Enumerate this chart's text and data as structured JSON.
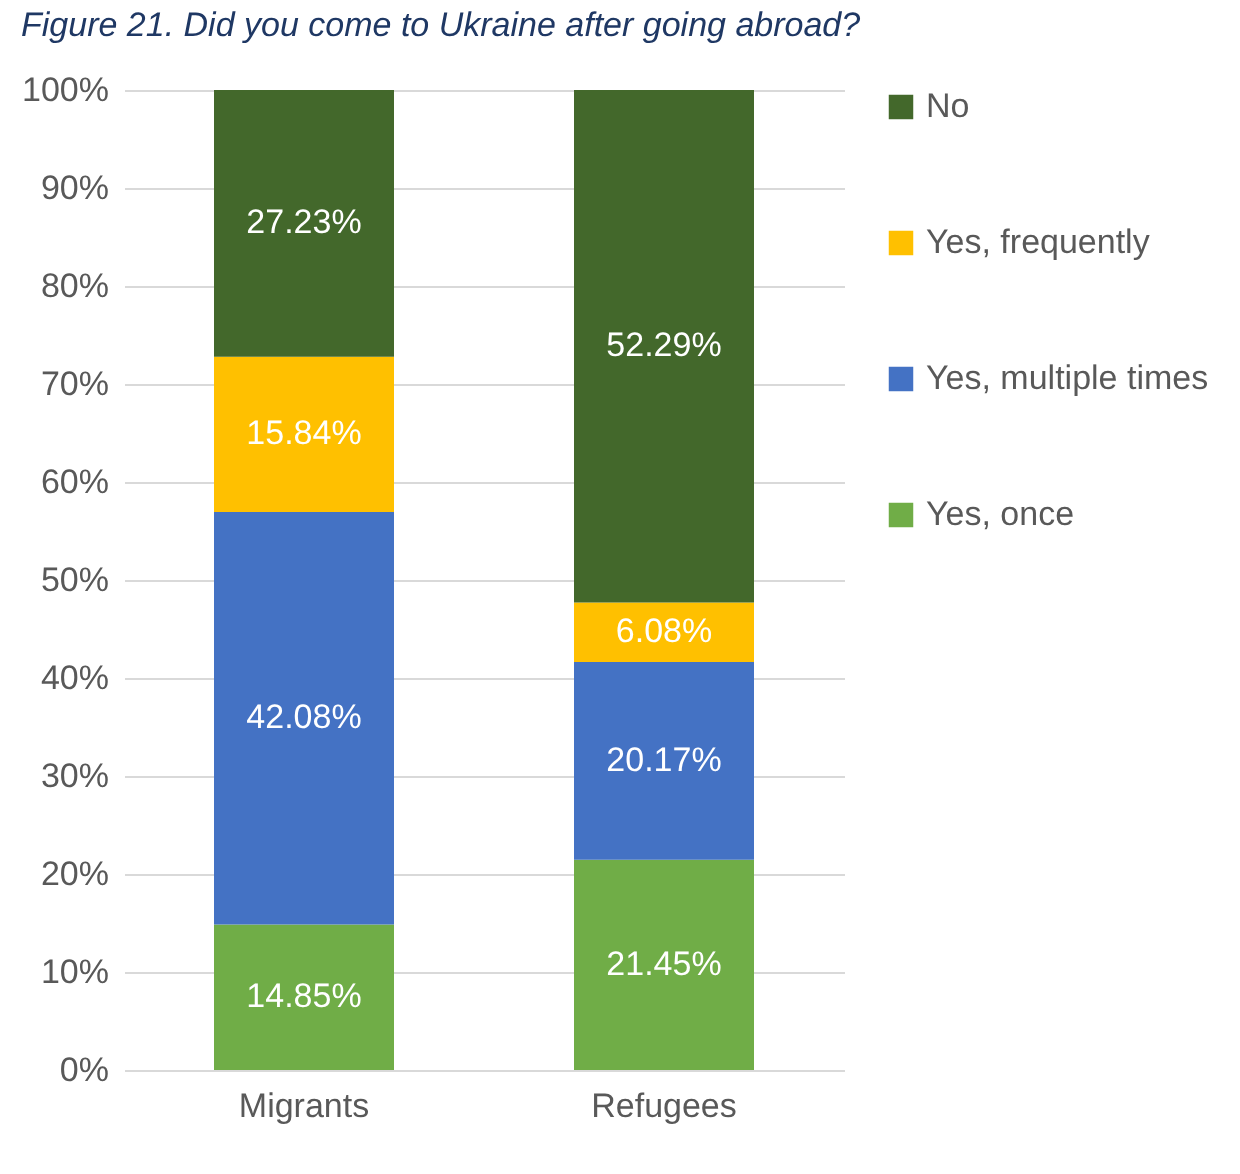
{
  "chart_data": {
    "type": "bar",
    "title": "Figure 21. Did you come to Ukraine after going abroad?",
    "categories": [
      "Migrants",
      "Refugees"
    ],
    "stacked": true,
    "series": [
      {
        "name": "Yes, once",
        "color": "#70ad47",
        "values": [
          14.85,
          21.45
        ],
        "value_labels": [
          "14.85%",
          "21.45%"
        ]
      },
      {
        "name": "Yes, multiple times",
        "color": "#4472c4",
        "values": [
          42.08,
          20.17
        ],
        "value_labels": [
          "42.08%",
          "20.17%"
        ]
      },
      {
        "name": "Yes, frequently",
        "color": "#ffc000",
        "values": [
          15.84,
          6.08
        ],
        "value_labels": [
          "15.84%",
          "6.08%"
        ]
      },
      {
        "name": "No",
        "color": "#43682b",
        "values": [
          27.23,
          52.29
        ],
        "value_labels": [
          "27.23%",
          "52.29%"
        ]
      }
    ],
    "ylim": [
      0,
      100
    ],
    "yticks": [
      {
        "value": 0,
        "label": "0%"
      },
      {
        "value": 10,
        "label": "10%"
      },
      {
        "value": 20,
        "label": "20%"
      },
      {
        "value": 30,
        "label": "30%"
      },
      {
        "value": 40,
        "label": "40%"
      },
      {
        "value": 50,
        "label": "50%"
      },
      {
        "value": 60,
        "label": "60%"
      },
      {
        "value": 70,
        "label": "70%"
      },
      {
        "value": 80,
        "label": "80%"
      },
      {
        "value": 90,
        "label": "90%"
      },
      {
        "value": 100,
        "label": "100%"
      }
    ],
    "grid": "y",
    "legend": "right"
  }
}
